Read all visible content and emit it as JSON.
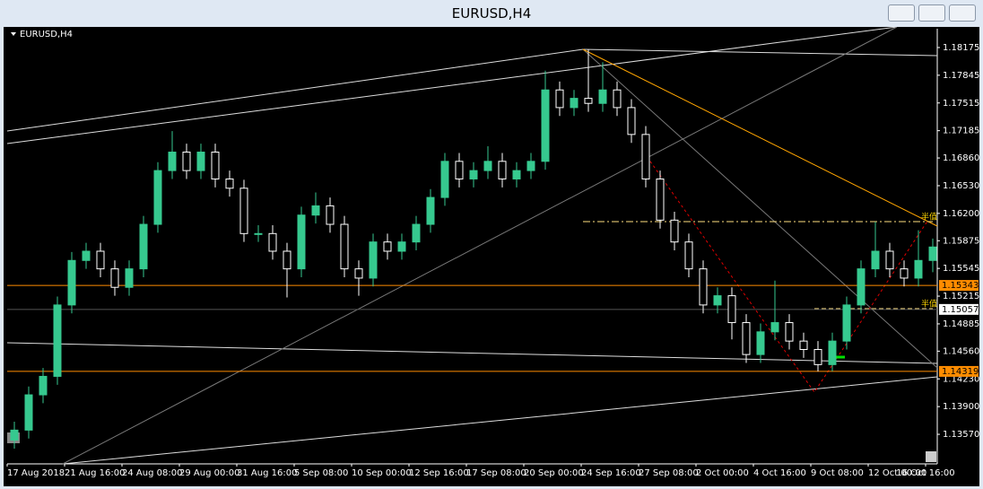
{
  "window_title": "EURUSD,H4",
  "chart_data": {
    "type": "candlestick",
    "title": "EURUSD,H4",
    "categories": [
      "17 Aug 2018",
      null,
      null,
      null,
      "21 Aug 16:00",
      null,
      null,
      null,
      "24 Aug 08:00",
      null,
      null,
      null,
      "29 Aug 00:00",
      null,
      null,
      null,
      "31 Aug 16:00",
      null,
      null,
      null,
      "5 Sep 08:00",
      null,
      null,
      null,
      "10 Sep 00:00",
      null,
      null,
      null,
      "12 Sep 16:00",
      null,
      null,
      null,
      "17 Sep 08:00",
      null,
      null,
      null,
      "20 Sep 00:00",
      null,
      null,
      null,
      "24 Sep 16:00",
      null,
      null,
      null,
      "27 Sep 08:00",
      null,
      null,
      null,
      "2 Oct 00:00",
      null,
      null,
      null,
      "4 Oct 16:00",
      null,
      null,
      null,
      "9 Oct 08:00",
      null,
      null,
      null,
      "12 Oct 00:00",
      null,
      null,
      null,
      "16 Oct 16:00"
    ],
    "ohlc": [
      [
        1.135,
        1.1372,
        1.134,
        1.1362
      ],
      [
        1.1362,
        1.1414,
        1.1352,
        1.1404
      ],
      [
        1.1404,
        1.1436,
        1.1394,
        1.1426
      ],
      [
        1.1426,
        1.1521,
        1.1416,
        1.1511
      ],
      [
        1.1511,
        1.1574,
        1.1501,
        1.1564
      ],
      [
        1.1564,
        1.1585,
        1.1554,
        1.1575
      ],
      [
        1.1575,
        1.1585,
        1.1544,
        1.1554
      ],
      [
        1.1554,
        1.1564,
        1.1522,
        1.1532
      ],
      [
        1.1532,
        1.1564,
        1.1522,
        1.1554
      ],
      [
        1.1554,
        1.1617,
        1.1544,
        1.1607
      ],
      [
        1.1607,
        1.1681,
        1.1597,
        1.1671
      ],
      [
        1.1671,
        1.1718,
        1.1661,
        1.1693
      ],
      [
        1.1693,
        1.1703,
        1.1661,
        1.1671
      ],
      [
        1.1671,
        1.1703,
        1.1661,
        1.1693
      ],
      [
        1.1693,
        1.1703,
        1.1651,
        1.1661
      ],
      [
        1.1661,
        1.1671,
        1.164,
        1.165
      ],
      [
        1.165,
        1.166,
        1.1586,
        1.1596
      ],
      [
        1.1596,
        1.1606,
        1.1586,
        1.1596
      ],
      [
        1.1596,
        1.1606,
        1.1565,
        1.1575
      ],
      [
        1.1575,
        1.1585,
        1.152,
        1.1554
      ],
      [
        1.1554,
        1.1628,
        1.1544,
        1.1618
      ],
      [
        1.1618,
        1.1645,
        1.1608,
        1.1629
      ],
      [
        1.1629,
        1.1639,
        1.1597,
        1.1607
      ],
      [
        1.1607,
        1.1617,
        1.1544,
        1.1554
      ],
      [
        1.1554,
        1.1564,
        1.1522,
        1.1543
      ],
      [
        1.1543,
        1.1596,
        1.1533,
        1.1586
      ],
      [
        1.1586,
        1.1596,
        1.1565,
        1.1575
      ],
      [
        1.1575,
        1.1596,
        1.1565,
        1.1586
      ],
      [
        1.1586,
        1.1617,
        1.1576,
        1.1607
      ],
      [
        1.1607,
        1.1649,
        1.1597,
        1.1639
      ],
      [
        1.1639,
        1.1692,
        1.1629,
        1.1682
      ],
      [
        1.1682,
        1.1692,
        1.1651,
        1.1661
      ],
      [
        1.1661,
        1.1681,
        1.1651,
        1.1671
      ],
      [
        1.1671,
        1.17,
        1.1661,
        1.1682
      ],
      [
        1.1682,
        1.1692,
        1.1651,
        1.1661
      ],
      [
        1.1661,
        1.1681,
        1.1651,
        1.1671
      ],
      [
        1.1671,
        1.1692,
        1.1661,
        1.1682
      ],
      [
        1.1682,
        1.179,
        1.1672,
        1.1767
      ],
      [
        1.1767,
        1.1777,
        1.1736,
        1.1746
      ],
      [
        1.1746,
        1.1767,
        1.1736,
        1.1757
      ],
      [
        1.1757,
        1.1815,
        1.1741,
        1.1751
      ],
      [
        1.1751,
        1.18,
        1.1741,
        1.1767
      ],
      [
        1.1767,
        1.1777,
        1.1736,
        1.1746
      ],
      [
        1.1746,
        1.1756,
        1.1704,
        1.1714
      ],
      [
        1.1714,
        1.1724,
        1.1651,
        1.1661
      ],
      [
        1.1661,
        1.1671,
        1.1602,
        1.1612
      ],
      [
        1.1612,
        1.1622,
        1.1576,
        1.1586
      ],
      [
        1.1586,
        1.1596,
        1.1544,
        1.1554
      ],
      [
        1.1554,
        1.1564,
        1.1501,
        1.1511
      ],
      [
        1.1511,
        1.1532,
        1.1501,
        1.1522
      ],
      [
        1.1522,
        1.1532,
        1.147,
        1.149
      ],
      [
        1.149,
        1.15,
        1.1442,
        1.1452
      ],
      [
        1.1452,
        1.1489,
        1.1442,
        1.1479
      ],
      [
        1.1479,
        1.154,
        1.1469,
        1.149
      ],
      [
        1.149,
        1.15,
        1.1458,
        1.1468
      ],
      [
        1.1468,
        1.1478,
        1.1448,
        1.1458
      ],
      [
        1.1458,
        1.1468,
        1.1432,
        1.144
      ],
      [
        1.144,
        1.1478,
        1.1432,
        1.1468
      ],
      [
        1.1468,
        1.1521,
        1.1458,
        1.1511
      ],
      [
        1.1511,
        1.1564,
        1.1501,
        1.1554
      ],
      [
        1.1554,
        1.161,
        1.1544,
        1.1575
      ],
      [
        1.1575,
        1.1585,
        1.1544,
        1.1554
      ],
      [
        1.1554,
        1.1564,
        1.1533,
        1.1543
      ],
      [
        1.1543,
        1.16,
        1.1533,
        1.1564
      ],
      [
        1.1564,
        1.159,
        1.155,
        1.158
      ]
    ],
    "up_color": "#36c98f",
    "down_color": "#ffffff",
    "ylim": [
      1.13218,
      1.18399
    ],
    "yticks": [
      {
        "value": 1.18175,
        "label": "1.18175"
      },
      {
        "value": 1.17845,
        "label": "1.17845"
      },
      {
        "value": 1.17515,
        "label": "1.17515"
      },
      {
        "value": 1.17185,
        "label": "1.17185"
      },
      {
        "value": 1.1686,
        "label": "1.16860"
      },
      {
        "value": 1.1653,
        "label": "1.16530"
      },
      {
        "value": 1.162,
        "label": "1.16200"
      },
      {
        "value": 1.15875,
        "label": "1.15875"
      },
      {
        "value": 1.15545,
        "label": "1.15545"
      },
      {
        "value": 1.15215,
        "label": "1.15215"
      },
      {
        "value": 1.14885,
        "label": "1.14885"
      },
      {
        "value": 1.1456,
        "label": "1.14560"
      },
      {
        "value": 1.1423,
        "label": "1.14230"
      },
      {
        "value": 1.139,
        "label": "1.13900"
      },
      {
        "value": 1.1357,
        "label": "1.13570"
      }
    ],
    "levels": [
      {
        "value": 1.15343,
        "color": "#ff8c00",
        "label_bg": "#ff8c00",
        "label_fg": "#000000"
      },
      {
        "value": 1.15057,
        "color": "#555555",
        "label_bg": "#ffffff",
        "label_fg": "#000000"
      },
      {
        "value": 1.14319,
        "color": "#ff8c00",
        "label_bg": "#ff8c00",
        "label_fg": "#000000"
      }
    ],
    "annotations": [
      "半值",
      "半值"
    ]
  }
}
